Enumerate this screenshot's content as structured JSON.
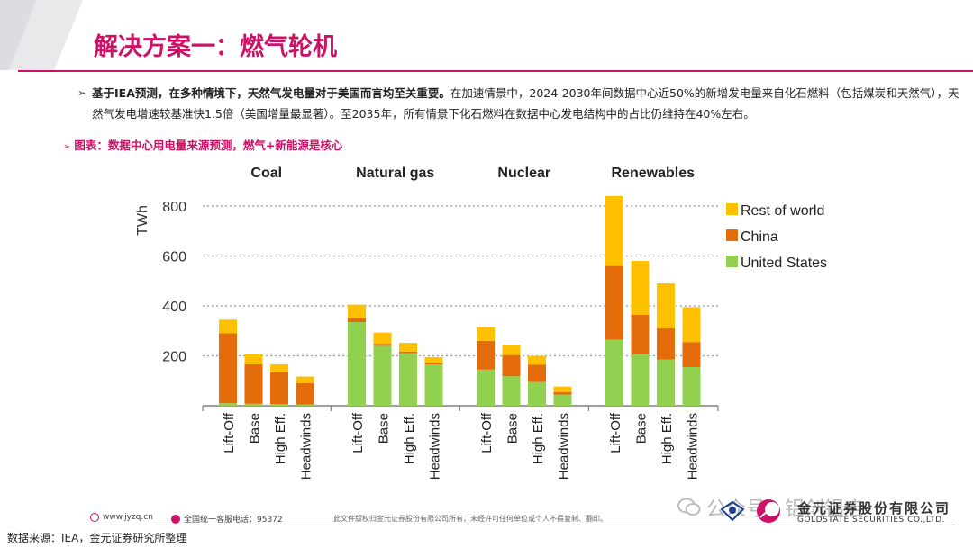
{
  "header": {
    "title": "解决方案一：燃气轮机"
  },
  "bullet": {
    "bold": "基于IEA预测，在多种情境下，天然气发电量对于美国而言均至关重要。",
    "text": "在加速情景中，2024-2030年间数据中心近50%的新增发电量来自化石燃料（包括煤炭和天然气），天然气发电增速较基准快1.5倍（美国增量最显著）。至2035年，所有情景下化石燃料在数据中心发电结构中的占比仍维持在40%左右。"
  },
  "subtitle": "图表：数据中心用电量来源预测，燃气+新能源是核心",
  "chart_data": {
    "type": "bar",
    "stacked": true,
    "groups": [
      "Coal",
      "Natural gas",
      "Nuclear",
      "Renewables"
    ],
    "categories": [
      "Lift-Off",
      "Base",
      "High Eff.",
      "Headwinds"
    ],
    "ylabel": "TWh",
    "yticks": [
      200,
      400,
      600,
      800
    ],
    "ylim": [
      0,
      850
    ],
    "legend": [
      {
        "name": "Rest of world",
        "color": "#ffc000"
      },
      {
        "name": "China",
        "color": "#e46c0a"
      },
      {
        "name": "United States",
        "color": "#92d050"
      }
    ],
    "series": [
      {
        "name": "United States",
        "color": "#92d050",
        "values": [
          [
            10,
            8,
            6,
            5
          ],
          [
            335,
            240,
            210,
            165
          ],
          [
            145,
            118,
            95,
            45
          ],
          [
            265,
            205,
            185,
            155
          ]
        ]
      },
      {
        "name": "China",
        "color": "#e46c0a",
        "values": [
          [
            280,
            158,
            128,
            85
          ],
          [
            15,
            8,
            7,
            5
          ],
          [
            115,
            85,
            70,
            10
          ],
          [
            295,
            160,
            125,
            100
          ]
        ]
      },
      {
        "name": "Rest of world",
        "color": "#ffc000",
        "values": [
          [
            55,
            40,
            32,
            27
          ],
          [
            55,
            45,
            35,
            25
          ],
          [
            55,
            42,
            35,
            22
          ],
          [
            280,
            215,
            180,
            140
          ]
        ]
      }
    ]
  },
  "footer": {
    "website": "www.jyzq.cn",
    "hotline": "全国统一客服电话：95372",
    "copyright": "此文件版权归金元证券股份有限公司所有，未经许可任何单位或个人不得复制、翻印。",
    "watermark": "公众号 · 铝创铝店",
    "company_cn": "金元证券股份有限公司",
    "company_en": "GOLDSTATE SECURITIES CO.,LTD."
  },
  "source": "数据来源：IEA，金元证券研究所整理"
}
